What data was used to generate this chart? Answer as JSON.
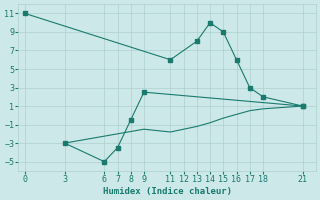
{
  "line1_x": [
    0,
    11,
    13,
    14,
    15,
    16,
    17,
    18,
    21
  ],
  "line1_y": [
    11,
    6,
    8,
    10,
    9,
    6,
    3,
    2,
    1
  ],
  "line2_x": [
    3,
    6,
    7,
    8,
    9,
    21
  ],
  "line2_y": [
    -3,
    -5,
    -3.5,
    -0.5,
    2.5,
    1
  ],
  "line3_x": [
    3,
    9,
    11,
    12,
    13,
    14,
    15,
    17,
    18,
    21
  ],
  "line3_y": [
    -3,
    -1.5,
    -1.8,
    -1.5,
    -1.2,
    -0.8,
    -0.3,
    0.5,
    0.7,
    1
  ],
  "line_color": "#1a7a6e",
  "bg_color": "#cce8e8",
  "grid_color": "#aed0d0",
  "xlabel": "Humidex (Indice chaleur)",
  "xticks": [
    0,
    3,
    6,
    7,
    8,
    9,
    11,
    12,
    13,
    14,
    15,
    16,
    17,
    18,
    21
  ],
  "yticks": [
    -5,
    -3,
    -1,
    1,
    3,
    5,
    7,
    9,
    11
  ],
  "xlim": [
    -0.5,
    22
  ],
  "ylim": [
    -6,
    12
  ],
  "xlabel_fontsize": 6.5,
  "tick_fontsize": 6,
  "marker_size": 2.5,
  "line_width": 0.8
}
